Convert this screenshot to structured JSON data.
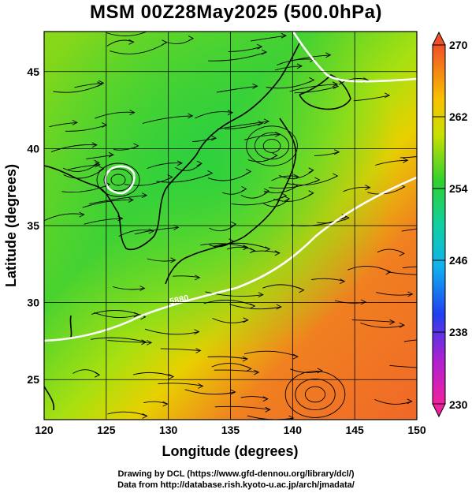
{
  "title": "MSM 00Z28May2025 (500.0hPa)",
  "x_axis": {
    "label": "Longitude (degrees)",
    "ticks": [
      "120",
      "125",
      "130",
      "135",
      "140",
      "145",
      "150"
    ],
    "range": [
      120,
      150
    ]
  },
  "y_axis": {
    "label": "Latitude  (degrees)",
    "ticks": [
      "25",
      "30",
      "35",
      "40",
      "45"
    ],
    "range": [
      22.4,
      47.6
    ]
  },
  "colorbar": {
    "ticks": [
      "270",
      "262",
      "254",
      "246",
      "238",
      "230"
    ],
    "range": [
      230,
      270
    ],
    "colors": [
      "#f0207a",
      "#c81ec8",
      "#5a28e0",
      "#1a4ef0",
      "#10a0f0",
      "#10d8d8",
      "#10d070",
      "#30d030",
      "#b8e000",
      "#f8c800",
      "#f88020",
      "#f05028"
    ]
  },
  "contour_label": "5880",
  "credits": {
    "line1": "Drawing by DCL (https://www.gfd-dennou.org/library/dcl/)",
    "line2": "Data from http://database.rish.kyoto-u.ac.jp/arch/jmadata/"
  }
}
